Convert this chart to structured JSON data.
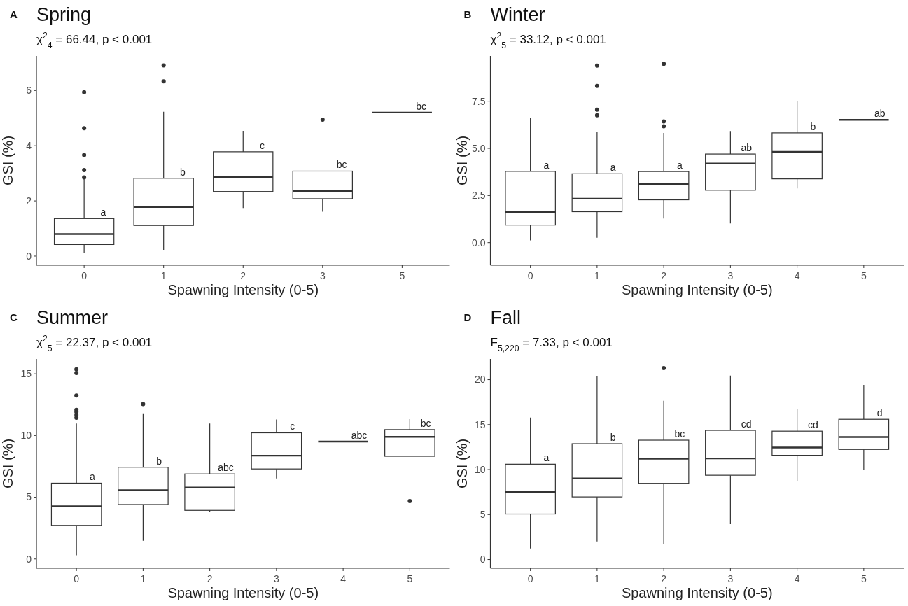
{
  "chart_data": [
    {
      "type": "box",
      "title": "Spring",
      "subtitle": "χ$^{2}$$_{4}$ = 66.44, p < 0.001",
      "xlabel": "Spawning Intensity (0-5)",
      "ylabel": "GSI (%)",
      "categories": [
        "0",
        "1",
        "2",
        "3",
        "5"
      ],
      "boxes": [
        {
          "low": 0.1,
          "q1": 0.42,
          "median": 0.8,
          "q3": 1.36,
          "high": 2.78,
          "outliers": [
            2.85,
            3.12,
            3.66,
            4.63,
            5.94
          ]
        },
        {
          "low": 0.23,
          "q1": 1.11,
          "median": 1.78,
          "q3": 2.82,
          "high": 5.23,
          "outliers": [
            6.33,
            6.91
          ]
        },
        {
          "low": 1.74,
          "q1": 2.34,
          "median": 2.87,
          "q3": 3.78,
          "high": 4.54
        },
        {
          "low": 1.61,
          "q1": 2.08,
          "median": 2.36,
          "q3": 3.08,
          "high": 3.08,
          "outliers": [
            4.94
          ]
        },
        {
          "low": 5.2,
          "q1": 5.2,
          "median": 5.2,
          "q3": 5.2,
          "high": 5.2
        }
      ],
      "ylim": [
        -0.33,
        7.25
      ],
      "yticks": [
        0,
        2,
        4,
        6
      ],
      "annotations": [
        "A",
        {
          "text": "a",
          "x": "0",
          "y": 1.36
        },
        {
          "text": "b",
          "x": "1",
          "y": 2.82
        },
        {
          "text": "c",
          "x": "2",
          "y": 3.78
        },
        {
          "text": "bc",
          "x": "3",
          "y": 3.08
        },
        {
          "text": "bc",
          "x": "5",
          "y": 5.2
        }
      ]
    },
    {
      "type": "box",
      "title": "Winter",
      "subtitle": "χ$^{2}$$_{5}$ = 33.12, p < 0.001",
      "xlabel": "Spawning Intensity (0-5)",
      "ylabel": "GSI (%)",
      "categories": [
        "0",
        "1",
        "2",
        "3",
        "4",
        "5"
      ],
      "boxes": [
        {
          "low": 0.12,
          "q1": 0.93,
          "median": 1.63,
          "q3": 3.78,
          "high": 6.62
        },
        {
          "low": 0.26,
          "q1": 1.64,
          "median": 2.33,
          "q3": 3.65,
          "high": 5.88,
          "outliers": [
            6.75,
            7.05,
            8.31,
            9.39
          ]
        },
        {
          "low": 1.28,
          "q1": 2.27,
          "median": 3.1,
          "q3": 3.77,
          "high": 5.82,
          "outliers": [
            6.17,
            6.43,
            9.48
          ]
        },
        {
          "low": 1.02,
          "q1": 2.78,
          "median": 4.19,
          "q3": 4.7,
          "high": 5.92
        },
        {
          "low": 2.87,
          "q1": 3.38,
          "median": 4.82,
          "q3": 5.82,
          "high": 7.51
        },
        {
          "low": 6.51,
          "q1": 6.51,
          "median": 6.51,
          "q3": 6.51,
          "high": 6.51
        }
      ],
      "ylim": [
        -1.2,
        9.9
      ],
      "yticks": [
        {
          "value": 0,
          "label": "0.0"
        },
        {
          "value": 2.5,
          "label": "2.5"
        },
        {
          "value": 5,
          "label": "5.0"
        },
        {
          "value": 7.5,
          "label": "7.5"
        }
      ],
      "annotations": [
        "B",
        {
          "text": "a",
          "x": "0",
          "y": 3.78
        },
        {
          "text": "a",
          "x": "1",
          "y": 3.65
        },
        {
          "text": "a",
          "x": "2",
          "y": 3.77
        },
        {
          "text": "ab",
          "x": "3",
          "y": 4.7
        },
        {
          "text": "b",
          "x": "4",
          "y": 5.82
        },
        {
          "text": "ab",
          "x": "5",
          "y": 6.51
        }
      ]
    },
    {
      "type": "box",
      "title": "Summer",
      "subtitle": "χ$^{2}$$_{5}$ = 22.37, p < 0.001",
      "xlabel": "Spawning Intensity (0-5)",
      "ylabel": "GSI (%)",
      "categories": [
        "0",
        "1",
        "2",
        "3",
        "4",
        "5"
      ],
      "boxes": [
        {
          "low": 0.3,
          "q1": 2.72,
          "median": 4.27,
          "q3": 6.14,
          "high": 10.97,
          "outliers": [
            11.44,
            11.67,
            11.9,
            12.07,
            13.24,
            15.07,
            15.37
          ]
        },
        {
          "low": 1.48,
          "q1": 4.41,
          "median": 5.58,
          "q3": 7.43,
          "high": 11.79,
          "outliers": [
            12.54
          ]
        },
        {
          "low": 3.82,
          "q1": 3.94,
          "median": 5.79,
          "q3": 6.89,
          "high": 10.97
        },
        {
          "low": 6.52,
          "q1": 7.29,
          "median": 8.37,
          "q3": 10.22,
          "high": 11.3
        },
        {
          "low": 9.51,
          "q1": 9.51,
          "median": 9.51,
          "q3": 9.51,
          "high": 9.51
        },
        {
          "low": 8.32,
          "q1": 8.32,
          "median": 9.89,
          "q3": 10.48,
          "high": 11.32,
          "outliers": [
            4.69
          ]
        }
      ],
      "ylim": [
        -0.75,
        16.2
      ],
      "yticks": [
        0,
        5,
        10,
        15
      ],
      "annotations": [
        "C",
        {
          "text": "a",
          "x": "0",
          "y": 6.14
        },
        {
          "text": "b",
          "x": "1",
          "y": 7.43
        },
        {
          "text": "abc",
          "x": "2",
          "y": 6.89
        },
        {
          "text": "c",
          "x": "3",
          "y": 10.22
        },
        {
          "text": "abc",
          "x": "4",
          "y": 9.51
        },
        {
          "text": "bc",
          "x": "5",
          "y": 10.48
        }
      ]
    },
    {
      "type": "box",
      "title": "Fall",
      "subtitle": "F$_{5,220}$ = 7.33, p < 0.001",
      "xlabel": "Spawning Intensity (0-5)",
      "ylabel": "GSI (%)",
      "categories": [
        "0",
        "1",
        "2",
        "3",
        "4",
        "5"
      ],
      "boxes": [
        {
          "low": 1.22,
          "q1": 5.06,
          "median": 7.5,
          "q3": 10.6,
          "high": 15.78
        },
        {
          "low": 2.0,
          "q1": 6.96,
          "median": 9.02,
          "q3": 12.88,
          "high": 20.35
        },
        {
          "low": 1.74,
          "q1": 8.47,
          "median": 11.2,
          "q3": 13.27,
          "high": 17.65,
          "outliers": [
            21.29
          ]
        },
        {
          "low": 3.93,
          "q1": 9.37,
          "median": 11.24,
          "q3": 14.36,
          "high": 20.45
        },
        {
          "low": 8.76,
          "q1": 11.59,
          "median": 12.46,
          "q3": 14.27,
          "high": 16.75
        },
        {
          "low": 9.98,
          "q1": 12.24,
          "median": 13.62,
          "q3": 15.59,
          "high": 19.42
        }
      ],
      "ylim": [
        -0.97,
        22.3
      ],
      "yticks": [
        0,
        5,
        10,
        15,
        20
      ],
      "annotations": [
        "D",
        {
          "text": "a",
          "x": "0",
          "y": 10.6
        },
        {
          "text": "b",
          "x": "1",
          "y": 12.88
        },
        {
          "text": "bc",
          "x": "2",
          "y": 13.27
        },
        {
          "text": "cd",
          "x": "3",
          "y": 14.36
        },
        {
          "text": "cd",
          "x": "4",
          "y": 14.27
        },
        {
          "text": "d",
          "x": "5",
          "y": 15.59
        }
      ]
    }
  ]
}
